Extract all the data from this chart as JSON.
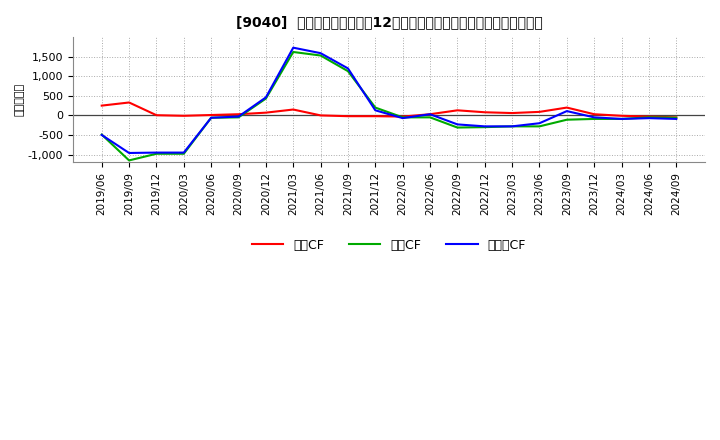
{
  "title": "[9040]  キャッシュフローの12か月移動合計の対前年同期増減額の推移",
  "ylabel": "（百万円）",
  "background_color": "#ffffff",
  "plot_bg_color": "#ffffff",
  "grid_color": "#aaaaaa",
  "x_labels": [
    "2019/06",
    "2019/09",
    "2019/12",
    "2020/03",
    "2020/06",
    "2020/09",
    "2020/12",
    "2021/03",
    "2021/06",
    "2021/09",
    "2021/12",
    "2022/03",
    "2022/06",
    "2022/09",
    "2022/12",
    "2023/03",
    "2023/06",
    "2023/09",
    "2023/12",
    "2024/03",
    "2024/06",
    "2024/09"
  ],
  "eigyo_cf": [
    250,
    330,
    5,
    -10,
    10,
    30,
    70,
    150,
    0,
    -20,
    -20,
    -30,
    30,
    130,
    80,
    60,
    90,
    200,
    30,
    -10,
    -30,
    -50
  ],
  "toshi_cf": [
    -490,
    -1150,
    -980,
    -980,
    -60,
    -50,
    430,
    1620,
    1530,
    1130,
    200,
    -50,
    -50,
    -310,
    -300,
    -280,
    -280,
    -110,
    -90,
    -90,
    -50,
    -60
  ],
  "free_cf": [
    -500,
    -960,
    -950,
    -950,
    -60,
    -30,
    460,
    1730,
    1590,
    1200,
    130,
    -70,
    30,
    -230,
    -280,
    -280,
    -200,
    110,
    -50,
    -90,
    -70,
    -90
  ],
  "ylim": [
    -1200,
    2000
  ],
  "yticks": [
    -1000,
    -500,
    0,
    500,
    1000,
    1500
  ],
  "line_colors": {
    "eigyo": "#ff0000",
    "toshi": "#00aa00",
    "free": "#0000ff"
  },
  "legend_labels": {
    "eigyo": "営業CF",
    "toshi": "投資CF",
    "free": "フリーCF"
  }
}
